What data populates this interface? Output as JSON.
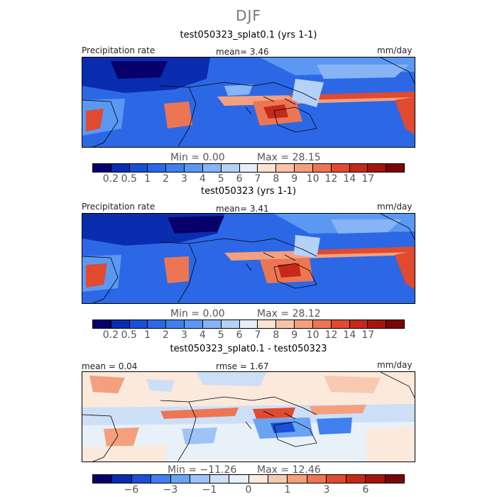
{
  "title": "DJF",
  "panels": [
    {
      "title": "test050323_splat0.1 (yrs 1-1)",
      "left_label": "Precipitation rate",
      "center_label": "mean=   3.46",
      "right_label": "mm/day",
      "min_label": "Min =   0.00",
      "max_label": "Max =  28.15",
      "field_mean": 3.46,
      "field_min": 0.0,
      "field_max": 28.15
    },
    {
      "title": "test050323 (yrs 1-1)",
      "left_label": "Precipitation rate",
      "center_label": "mean=   3.41",
      "right_label": "mm/day",
      "min_label": "Min =   0.00",
      "max_label": "Max =  28.12",
      "field_mean": 3.41,
      "field_min": 0.0,
      "field_max": 28.12
    },
    {
      "title": "test050323_splat0.1 - test050323",
      "left_label": "mean =   0.04",
      "center_label": "rmse =   1.67",
      "right_label": "mm/day",
      "min_label": "Min = −11.26",
      "max_label": "Max =  12.46",
      "field_mean": 0.04,
      "field_rmse": 1.67,
      "field_min": -11.26,
      "field_max": 12.46
    }
  ],
  "colorbars": {
    "precip": {
      "colors": [
        "#08006b",
        "#0a2db0",
        "#1b4fd6",
        "#2c68e6",
        "#3f80ee",
        "#5b98f2",
        "#86b4f5",
        "#b4d1f7",
        "#e6eef8",
        "#fbe2d3",
        "#f8c3a8",
        "#f4a07e",
        "#ec7653",
        "#e04a2f",
        "#c52a18",
        "#a51510",
        "#7a0606"
      ],
      "tick_labels": [
        "0.2",
        "0.5",
        "1",
        "2",
        "3",
        "4",
        "5",
        "6",
        "7",
        "8",
        "9",
        "10",
        "12",
        "14",
        "17"
      ]
    },
    "diff": {
      "colors": [
        "#08006b",
        "#0a2db0",
        "#1b4fd6",
        "#3f80ee",
        "#6ba3f3",
        "#9fc3f6",
        "#cddff7",
        "#e8f0f8",
        "#fbe9dc",
        "#f8c9b0",
        "#f4a07e",
        "#ec7653",
        "#e04a2f",
        "#c52a18",
        "#a51510",
        "#7a0606"
      ],
      "tick_labels": [
        "−6",
        "−3",
        "−1",
        "0",
        "1",
        "3",
        "6"
      ]
    }
  }
}
